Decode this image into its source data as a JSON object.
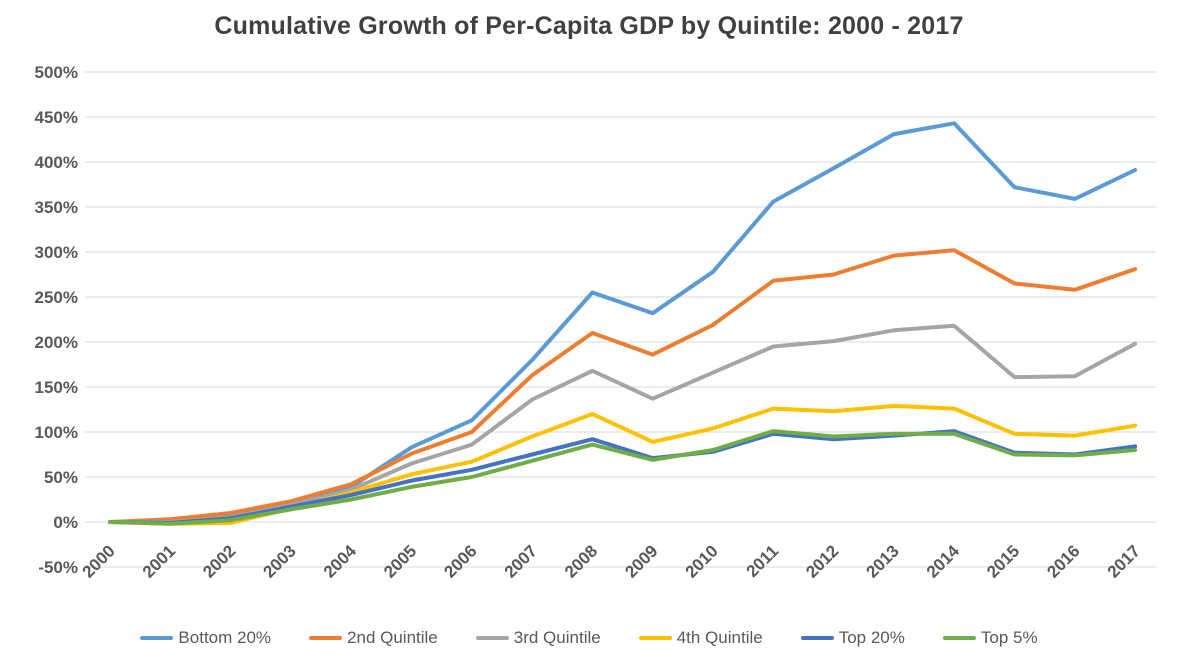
{
  "chart": {
    "title_color": "#404040",
    "axis_label_color": "#595959",
    "gridline_color": "#D9D9D9",
    "background": "#FFFFFF"
  },
  "chart_data": {
    "type": "line",
    "title": "Cumulative Growth of Per-Capita GDP by Quintile: 2000 - 2017",
    "xlabel": "",
    "ylabel": "",
    "x": [
      "2000",
      "2001",
      "2002",
      "2003",
      "2004",
      "2005",
      "2006",
      "2007",
      "2008",
      "2009",
      "2010",
      "2011",
      "2012",
      "2013",
      "2014",
      "2015",
      "2016",
      "2017"
    ],
    "y_ticks": [
      "500%",
      "450%",
      "400%",
      "350%",
      "300%",
      "250%",
      "200%",
      "150%",
      "100%",
      "50%",
      "0%",
      "-50%"
    ],
    "ylim": [
      -50,
      500
    ],
    "y_tick_step": 50,
    "y_unit": "%",
    "grid": true,
    "legend_position": "bottom",
    "series": [
      {
        "name": "Bottom 20%",
        "color": "#5B9BD5",
        "values": [
          0,
          1,
          7,
          21,
          39,
          83,
          113,
          180,
          255,
          232,
          278,
          356,
          393,
          431,
          443,
          372,
          359,
          391
        ]
      },
      {
        "name": "2nd Quintile",
        "color": "#ED7D31",
        "values": [
          0,
          3,
          10,
          23,
          42,
          76,
          100,
          163,
          210,
          186,
          219,
          268,
          275,
          296,
          302,
          265,
          258,
          281
        ]
      },
      {
        "name": "3rd Quintile",
        "color": "#A5A5A5",
        "values": [
          0,
          0,
          5,
          19,
          36,
          65,
          86,
          136,
          168,
          137,
          166,
          195,
          201,
          213,
          218,
          161,
          162,
          198
        ]
      },
      {
        "name": "4th Quintile",
        "color": "#FFC000",
        "values": [
          0,
          -2,
          -1,
          15,
          33,
          53,
          67,
          95,
          120,
          89,
          104,
          126,
          123,
          129,
          126,
          98,
          96,
          107
        ]
      },
      {
        "name": "Top 20%",
        "color": "#4472C4",
        "values": [
          0,
          -1,
          4,
          17,
          30,
          46,
          58,
          75,
          92,
          71,
          78,
          98,
          92,
          96,
          101,
          77,
          75,
          84
        ]
      },
      {
        "name": "Top 5%",
        "color": "#70AD47",
        "values": [
          0,
          -2,
          2,
          14,
          25,
          39,
          50,
          68,
          86,
          69,
          80,
          101,
          95,
          98,
          98,
          75,
          74,
          80
        ]
      }
    ]
  }
}
